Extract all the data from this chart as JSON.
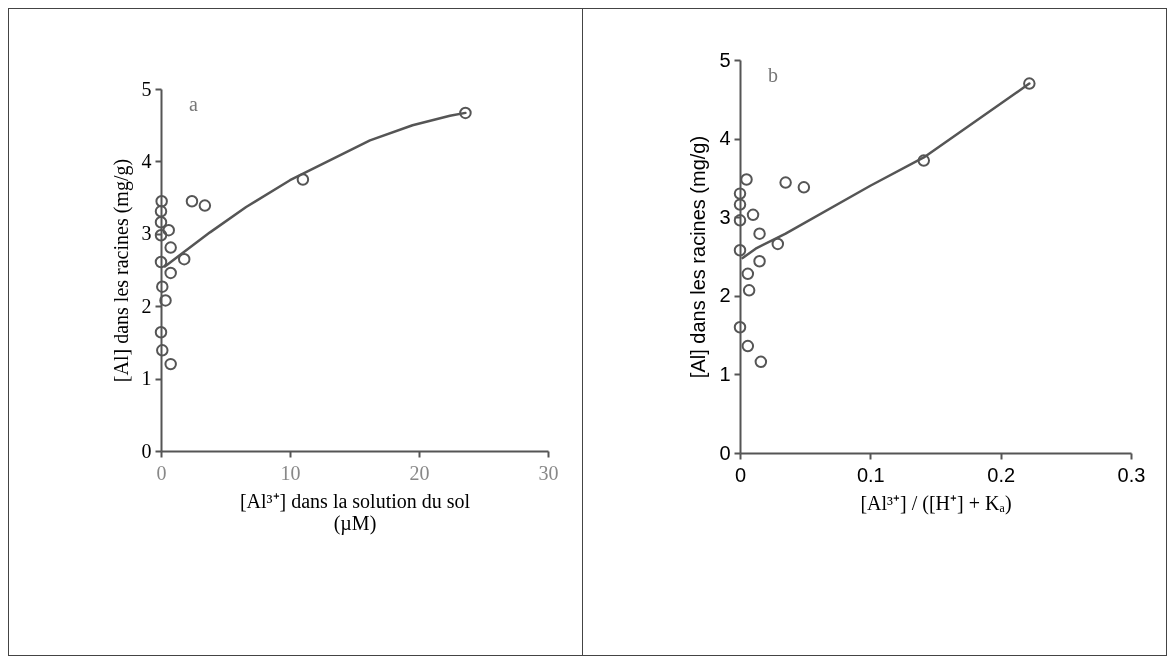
{
  "chart_data": [
    {
      "type": "scatter",
      "annotations": [
        "a"
      ],
      "ylabel": "[Al] dans les racines (mg/g)",
      "xlabel": "[Al³⁺] dans la solution du sol (µM)",
      "xlim": [
        0,
        30
      ],
      "xticks": [
        0,
        10,
        20,
        30
      ],
      "ylim": [
        0,
        5
      ],
      "yticks": [
        0,
        1,
        2,
        3,
        4,
        5
      ],
      "grid": false,
      "series": [
        {
          "type": "scatter",
          "marker": "circle",
          "color": "#555555",
          "x": [
            0.05,
            0.0,
            0.0,
            0.0,
            0.6,
            0.75,
            0.0,
            1.8,
            0.75,
            0.1,
            0.35,
            0.0,
            0.1,
            0.75,
            2.4,
            3.4,
            11,
            23.6
          ],
          "values": [
            3.45,
            3.31,
            3.16,
            2.98,
            3.05,
            2.81,
            2.61,
            2.65,
            2.46,
            2.27,
            2.08,
            1.64,
            1.39,
            1.2,
            3.45,
            3.39,
            3.75,
            4.67
          ]
        },
        {
          "type": "line",
          "color": "#555555",
          "x": [
            0.3,
            3.8,
            6.6,
            10,
            16.2,
            19.5,
            22.4,
            23.6
          ],
          "values": [
            2.55,
            3.02,
            3.37,
            3.74,
            4.29,
            4.5,
            4.63,
            4.67
          ]
        }
      ]
    },
    {
      "type": "scatter",
      "annotations": [
        "b"
      ],
      "ylabel": "[Al] dans les racines (mg/g)",
      "xlabel": "[Al³⁺] / ([H⁺] + Kₐ)",
      "xlim": [
        0,
        0.3
      ],
      "xticks": [
        0,
        0.1,
        0.2,
        0.3
      ],
      "ylim": [
        0,
        5
      ],
      "yticks": [
        0,
        1,
        2,
        3,
        4,
        5
      ],
      "grid": false,
      "series": [
        {
          "type": "scatter",
          "marker": "circle",
          "color": "#555555",
          "x": [
            0.005,
            0,
            0,
            0,
            0.01,
            0.015,
            0,
            0.029,
            0.015,
            0.006,
            0.007,
            0,
            0.006,
            0.016,
            0.035,
            0.049,
            0.141,
            0.222
          ],
          "values": [
            3.48,
            3.3,
            3.16,
            2.96,
            3.03,
            2.79,
            2.58,
            2.66,
            2.44,
            2.28,
            2.07,
            1.6,
            1.36,
            1.16,
            3.44,
            3.38,
            3.72,
            4.7
          ]
        },
        {
          "type": "line",
          "color": "#555555",
          "x": [
            0.002,
            0.012,
            0.035,
            0.1,
            0.141,
            0.222
          ],
          "values": [
            2.48,
            2.6,
            2.79,
            3.4,
            3.76,
            4.7
          ]
        }
      ]
    }
  ]
}
